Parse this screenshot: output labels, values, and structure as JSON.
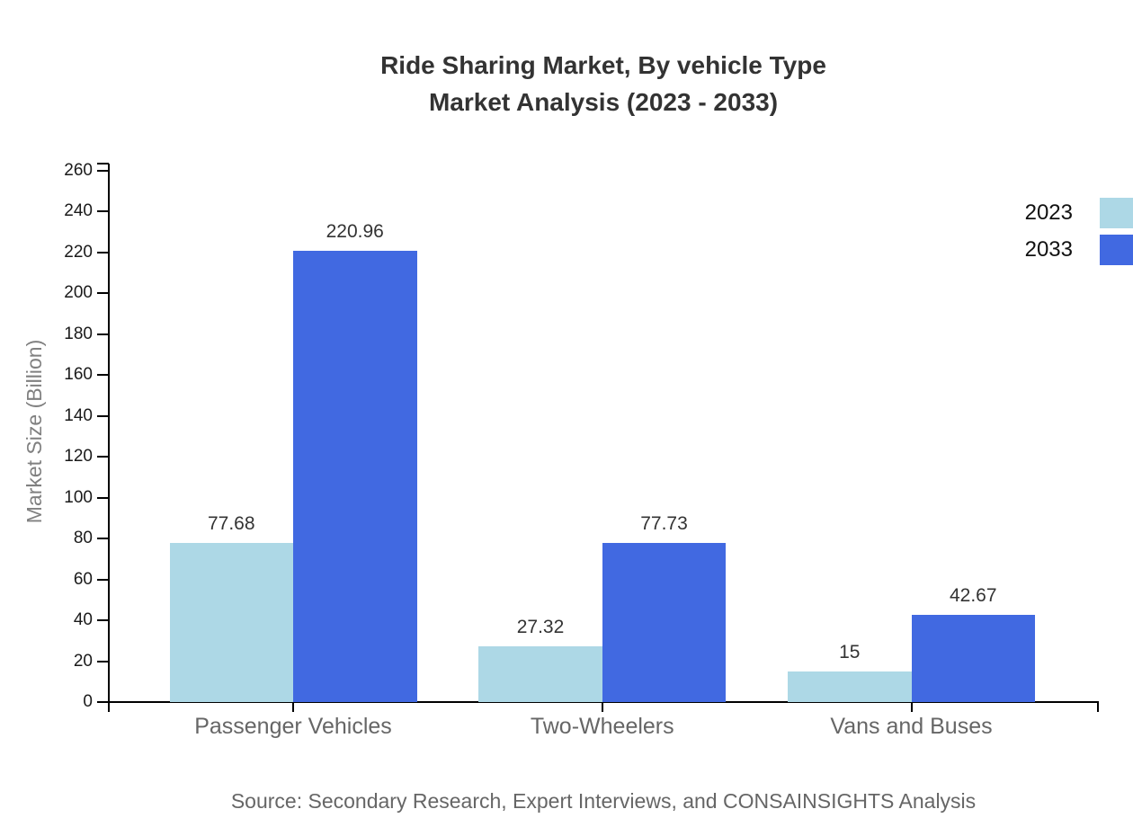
{
  "chart_data": {
    "type": "bar",
    "title_line1": "Ride Sharing Market, By vehicle Type",
    "title_line2": "Market Analysis (2023 - 2033)",
    "ylabel": "Market Size (Billion)",
    "ylim": [
      0,
      260
    ],
    "ytick_step": 20,
    "grid": false,
    "legend_position": "top-right",
    "categories": [
      "Passenger Vehicles",
      "Two-Wheelers",
      "Vans and Buses"
    ],
    "series": [
      {
        "name": "2023",
        "color": "#ADD8E6",
        "values": [
          77.68,
          27.32,
          15
        ],
        "labels": [
          "77.68",
          "27.32",
          "15"
        ]
      },
      {
        "name": "2033",
        "color": "#4169E1",
        "values": [
          220.96,
          77.73,
          42.67
        ],
        "labels": [
          "220.96",
          "77.73",
          "42.67"
        ]
      }
    ],
    "source": "Source: Secondary Research, Expert Interviews, and CONSAINSIGHTS Analysis",
    "colors": {
      "axis": "#000000",
      "title_text": "#333333",
      "tick_text": "#1a1a1a",
      "category_text": "#666666",
      "ylabel_text": "#808080",
      "source_text": "#666666",
      "legend_text": "#111111",
      "background": "#ffffff"
    }
  }
}
